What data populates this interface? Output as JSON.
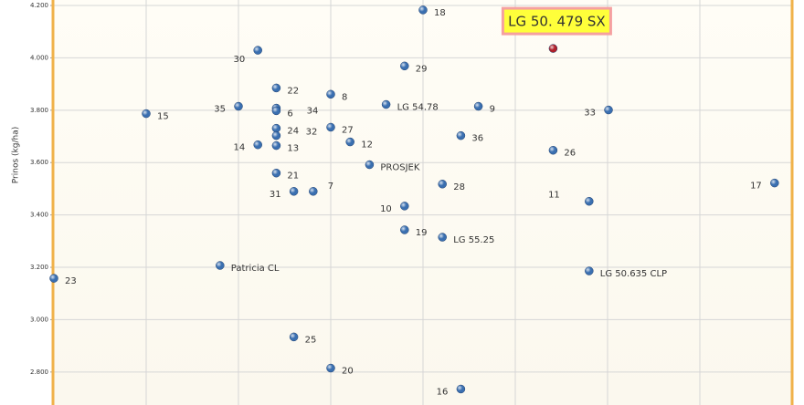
{
  "chart_data": {
    "type": "scatter",
    "y_label": "Prinos (kg/ha)",
    "xlim": [
      0,
      8
    ],
    "xticks": [
      0,
      1,
      2,
      3,
      4,
      5,
      6,
      7,
      8
    ],
    "ylim": [
      2674,
      4221
    ],
    "yticks": [
      {
        "value": 2800,
        "label": "2.800"
      },
      {
        "value": 3000,
        "label": "3.000"
      },
      {
        "value": 3200,
        "label": "3.200"
      },
      {
        "value": 3400,
        "label": "3.400"
      },
      {
        "value": 3600,
        "label": "3.600"
      },
      {
        "value": 3800,
        "label": "3.800"
      },
      {
        "value": 4000,
        "label": "4.000"
      },
      {
        "value": 4200,
        "label": "4.200"
      }
    ],
    "grid": true,
    "series": [
      {
        "color": "#3a6fb0",
        "labels": [
          "18",
          "30",
          "29",
          "22",
          "8",
          "LG 54.78",
          "35",
          "9",
          "33",
          "34",
          "6",
          "15",
          "24",
          "27",
          "32",
          "36",
          "12",
          "14",
          "13",
          "26",
          "PROSJEK",
          "21",
          "28",
          "17",
          "31",
          "7",
          "11",
          "10",
          "19",
          "LG 55.25",
          "Patricia CL",
          "LG 50.635 CLP",
          "23",
          "25",
          "20",
          "16"
        ],
        "x": [
          4.0,
          2.21,
          3.8,
          2.41,
          3.0,
          3.6,
          2.0,
          4.6,
          6.01,
          2.41,
          2.41,
          1.0,
          2.41,
          3.0,
          2.41,
          4.41,
          3.21,
          2.21,
          2.41,
          5.41,
          3.42,
          2.41,
          4.21,
          7.81,
          2.6,
          2.81,
          5.8,
          3.8,
          3.8,
          4.21,
          1.8,
          5.8,
          0,
          2.6,
          3.0,
          4.41
        ],
        "values": [
          4183,
          4029,
          3969,
          3885,
          3861,
          3822,
          3815,
          3815,
          3801,
          3808,
          3798,
          3787,
          3731,
          3735,
          3703,
          3703,
          3679,
          3668,
          3665,
          3647,
          3592,
          3560,
          3518,
          3522,
          3490,
          3490,
          3452,
          3434,
          3343,
          3315,
          3207,
          3186,
          3158,
          2934,
          2815,
          2735
        ]
      },
      {
        "color": "#b0202a",
        "labels": [
          "LG 50. 479 SX"
        ],
        "x": [
          5.41
        ],
        "values": [
          4036
        ]
      }
    ]
  }
}
